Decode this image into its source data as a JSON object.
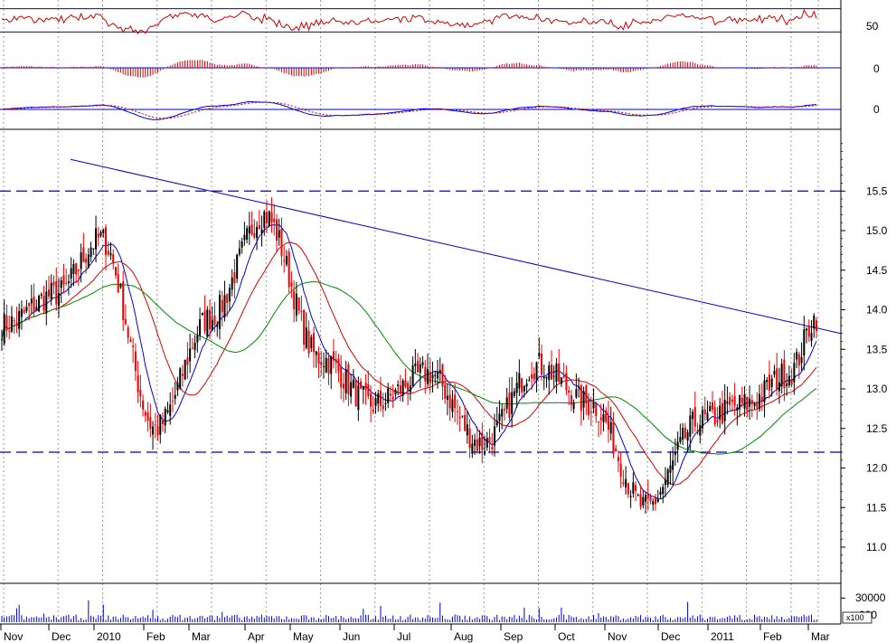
{
  "colors": {
    "background": "#ffffff",
    "grid": "#9a9a9a",
    "hline": "#0000cc",
    "up_candle": "#000000",
    "down_candle": "#ee0000",
    "ma_fast": "#0000dd",
    "ma_mid": "#dd0000",
    "ma_slow": "#008800",
    "osc": "#cc0000",
    "volume": "#0000cc"
  },
  "x_axis": {
    "labels": [
      "Nov",
      "Dec",
      "2010",
      "Feb",
      "Mar",
      "Apr",
      "May",
      "Jun",
      "Jul",
      "Aug",
      "Sep",
      "Oct",
      "Nov",
      "Dec",
      "2011",
      "Feb",
      "Mar"
    ]
  },
  "panels": {
    "rsi": {
      "ticks": [
        "50"
      ]
    },
    "histogram": {
      "ticks": [
        "0"
      ]
    },
    "macd": {
      "ticks": [
        "0"
      ]
    },
    "price": {
      "ticks": [
        "15.5",
        "15.0",
        "14.5",
        "14.0",
        "13.5",
        "13.0",
        "12.5",
        "12.0",
        "11.5",
        "11.0"
      ]
    },
    "volume": {
      "ticks": [
        "30000"
      ],
      "zero_label": "000",
      "multiplier": "x100"
    }
  },
  "chart_data": {
    "type": "candlestick",
    "period": "Nov 2009 – Mar 2011",
    "price": {
      "ylim": [
        10.6,
        16.2
      ],
      "resistance": 15.5,
      "support": 12.2,
      "trendline": {
        "start": [
          "Dec 2009",
          15.9
        ],
        "end": [
          "Mar 2011",
          13.7
        ]
      },
      "approx_monthly_close": [
        {
          "month": "Nov 2009",
          "value": 13.8
        },
        {
          "month": "Dec 2009",
          "value": 14.2
        },
        {
          "month": "Jan 2010",
          "value": 14.9
        },
        {
          "month": "Feb 2010",
          "value": 12.5
        },
        {
          "month": "Mar 2010",
          "value": 13.9
        },
        {
          "month": "Apr 2010",
          "value": 15.2
        },
        {
          "month": "May 2010",
          "value": 13.4
        },
        {
          "month": "Jun 2010",
          "value": 12.8
        },
        {
          "month": "Jul 2010",
          "value": 13.2
        },
        {
          "month": "Aug 2010",
          "value": 12.3
        },
        {
          "month": "Sep 2010",
          "value": 13.3
        },
        {
          "month": "Oct 2010",
          "value": 12.8
        },
        {
          "month": "Nov 2010",
          "value": 11.5
        },
        {
          "month": "Dec 2010",
          "value": 12.6
        },
        {
          "month": "Jan 2011",
          "value": 12.8
        },
        {
          "month": "Feb 2011",
          "value": 13.2
        },
        {
          "month": "Mar 2011",
          "value": 13.9
        }
      ],
      "moving_averages": [
        "fast (blue)",
        "medium (red)",
        "slow (green)"
      ]
    },
    "rsi": {
      "upper": 70,
      "lower": 30,
      "ylim": [
        15,
        85
      ]
    },
    "volume": {
      "unit": "x100",
      "ylim": [
        0,
        45000
      ]
    }
  }
}
